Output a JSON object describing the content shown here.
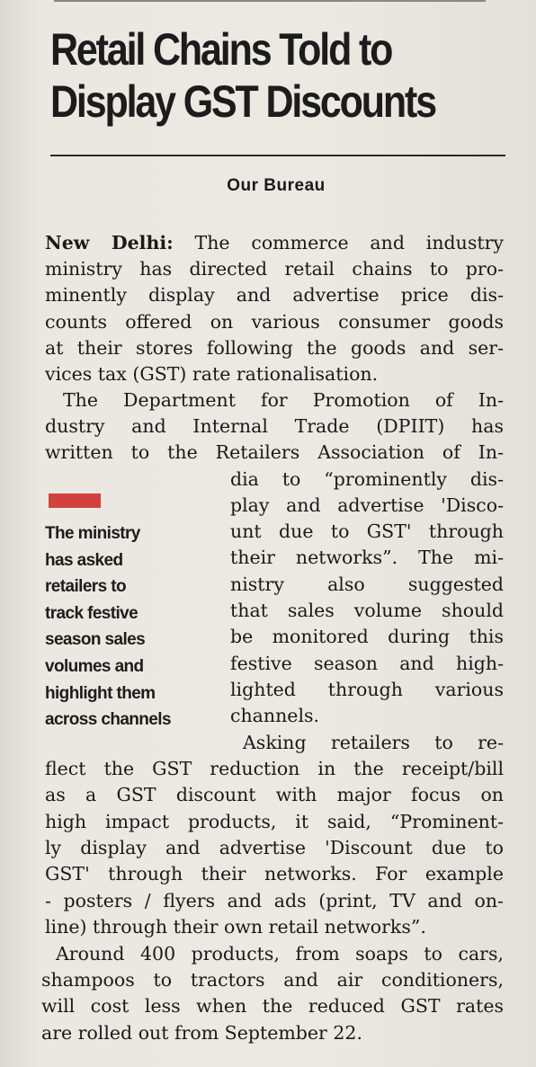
{
  "article": {
    "headline_line1": "Retail Chains Told to",
    "headline_line2": "Display GST Discounts",
    "byline": "Our Bureau",
    "dateline": "New Delhi:",
    "pullquote": [
      "The ministry",
      "has asked",
      "retailers to",
      "track festive",
      "season sales",
      "volumes and",
      "highlight them",
      "across channels"
    ],
    "lines": [
      " The commerce and industry",
      "ministry has directed retail chains to pro-",
      "minently display and advertise price dis-",
      "counts offered on various consumer goods",
      "at their stores following the goods and ser-",
      "vices tax (GST) rate rationalisation.",
      "The Department for Promotion of In-",
      "dustry and Internal Trade (DPIIT) has",
      "written to the Retailers Association of In-",
      "dia to “prominently dis-",
      "play and advertise 'Disco-",
      "unt due to GST' through",
      "their networks”. The mi-",
      "nistry also suggested",
      "that sales volume should",
      "be monitored during this",
      "festive season and high-",
      "lighted through various",
      "channels.",
      "Asking retailers to re-",
      "flect the GST reduction in the receipt/bill",
      "as a GST discount with major focus on",
      "high impact products, it said, “Prominent-",
      "ly display and advertise 'Discount due to",
      "GST' through their networks. For example",
      "- posters / flyers and ads (print, TV and on-",
      "line) through their own retail networks”.",
      "Around 400 products, from soaps to cars,",
      "shampoos to tractors and air conditioners,",
      "will cost less when the reduced GST rates",
      "are rolled out from September 22."
    ]
  },
  "colors": {
    "accent_bar": "#d3413f",
    "paper": "#ebe8e1",
    "ink": "#1a1a1a"
  }
}
